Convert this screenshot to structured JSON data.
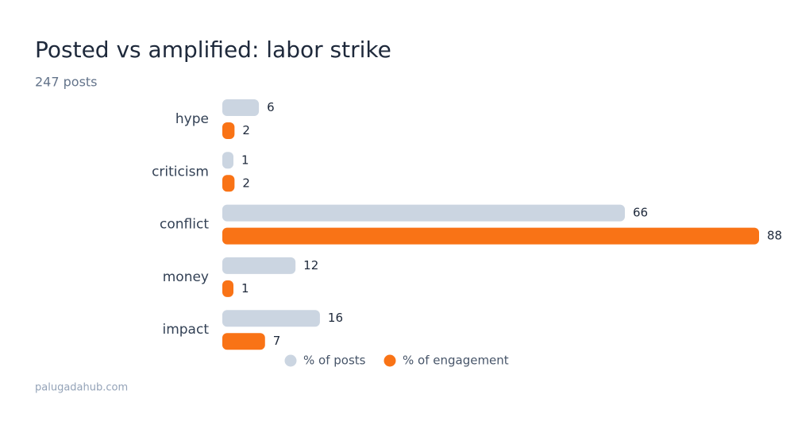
{
  "chart_data": {
    "type": "hbar",
    "title": "Posted vs amplified: labor strike",
    "subtitle": "247 posts",
    "categories": [
      "hype",
      "criticism",
      "conflict",
      "money",
      "impact"
    ],
    "series": [
      {
        "name": "% of posts",
        "color": "#cbd5e1",
        "values": [
          6,
          1,
          66,
          12,
          16
        ]
      },
      {
        "name": "% of engagement",
        "color": "#f97316",
        "values": [
          2,
          2,
          88,
          1,
          7
        ]
      }
    ],
    "source": "palugadahub.com"
  }
}
